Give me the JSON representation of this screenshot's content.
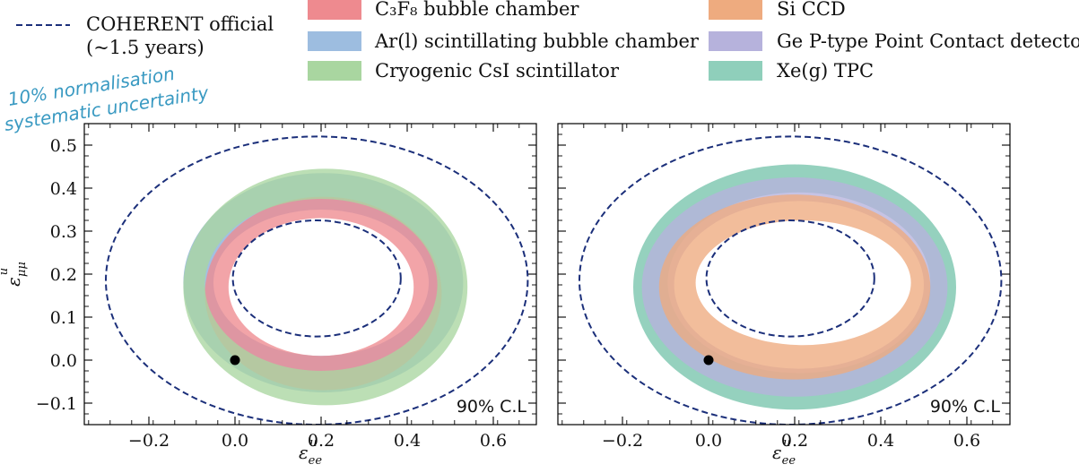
{
  "legend": {
    "official_label_line1": "COHERENT official",
    "official_label_line2": "(~1.5 years)",
    "items": [
      {
        "label": "C₃F₈ bubble chamber",
        "color": "#ee8a8f"
      },
      {
        "label": "Ar(l) scintillating bubble chamber",
        "color": "#9dbde0"
      },
      {
        "label": "Cryogenic CsI scintillator",
        "color": "#a9d6a0"
      },
      {
        "label": "Si CCD",
        "color": "#eeab7f"
      },
      {
        "label": "Ge P-type Point Contact detector",
        "color": "#b6b2dc"
      },
      {
        "label": "Xe(g) TPC",
        "color": "#8fcfbb"
      }
    ]
  },
  "annotation": {
    "line1": "10% normalisation",
    "line2": "systematic uncertainty",
    "color": "#3a9ac2"
  },
  "chart_data": [
    {
      "type": "area",
      "panel": "left",
      "xlabel": "ε_ee^u",
      "ylabel": "ε_μμ^u",
      "xlim": [
        -0.35,
        0.7
      ],
      "ylim": [
        -0.15,
        0.55
      ],
      "xticks": [
        "−0.2",
        "0.0",
        "0.2",
        "0.4",
        "0.6"
      ],
      "yticks": [
        "−0.1",
        "0.0",
        "0.1",
        "0.2",
        "0.3",
        "0.4",
        "0.5"
      ],
      "cl_label": "90% C.L",
      "sm_point": {
        "x": 0.0,
        "y": 0.0
      },
      "coherent_official": {
        "outer": {
          "cx": 0.19,
          "cy": 0.185,
          "rx": 0.49,
          "ry": 0.335
        },
        "inner": {
          "cx": 0.19,
          "cy": 0.19,
          "rx": 0.195,
          "ry": 0.135
        }
      },
      "series": [
        {
          "name": "Ar(l) scintillating bubble chamber",
          "color": "#9dbde0",
          "outer": {
            "cx": 0.205,
            "cy": 0.18,
            "rx": 0.325,
            "ry": 0.255
          },
          "inner": {
            "cx": 0.2,
            "cy": 0.18,
            "rx": 0.25,
            "ry": 0.17
          }
        },
        {
          "name": "C₃F₈ bubble chamber",
          "color": "#ee8a8f",
          "outer": {
            "cx": 0.205,
            "cy": 0.155,
            "rx": 0.275,
            "ry": 0.225
          },
          "inner": {
            "cx": 0.2,
            "cy": 0.17,
            "rx": 0.215,
            "ry": 0.16
          }
        },
        {
          "name": "Cryogenic CsI scintillator",
          "color": "#a9d6a0",
          "outer": {
            "cx": 0.21,
            "cy": 0.17,
            "rx": 0.33,
            "ry": 0.275
          },
          "inner": {
            "cx": 0.2,
            "cy": 0.175,
            "rx": 0.27,
            "ry": 0.2
          }
        }
      ]
    },
    {
      "type": "area",
      "panel": "right",
      "xlabel": "ε_ee^u",
      "ylabel": "",
      "xlim": [
        -0.35,
        0.7
      ],
      "ylim": [
        -0.15,
        0.55
      ],
      "xticks": [
        "−0.2",
        "0.0",
        "0.2",
        "0.4",
        "0.6"
      ],
      "cl_label": "90% C.L",
      "sm_point": {
        "x": 0.0,
        "y": 0.0
      },
      "coherent_official": {
        "outer": {
          "cx": 0.19,
          "cy": 0.185,
          "rx": 0.49,
          "ry": 0.335
        },
        "inner": {
          "cx": 0.19,
          "cy": 0.19,
          "rx": 0.195,
          "ry": 0.135
        }
      },
      "series": [
        {
          "name": "Xe(g) TPC",
          "color": "#8fcfbb",
          "outer": {
            "cx": 0.2,
            "cy": 0.17,
            "rx": 0.375,
            "ry": 0.285
          },
          "inner": {
            "cx": 0.21,
            "cy": 0.18,
            "rx": 0.305,
            "ry": 0.21
          }
        },
        {
          "name": "Ge P-type Point Contact detector",
          "color": "#b6b2dc",
          "outer": {
            "cx": 0.2,
            "cy": 0.17,
            "rx": 0.355,
            "ry": 0.255
          },
          "inner": {
            "cx": 0.21,
            "cy": 0.175,
            "rx": 0.29,
            "ry": 0.195
          }
        },
        {
          "name": "Si CCD",
          "color": "#eeab7f",
          "outer": {
            "cx": 0.2,
            "cy": 0.17,
            "rx": 0.315,
            "ry": 0.215
          },
          "inner": {
            "cx": 0.22,
            "cy": 0.18,
            "rx": 0.25,
            "ry": 0.145
          }
        }
      ]
    }
  ]
}
